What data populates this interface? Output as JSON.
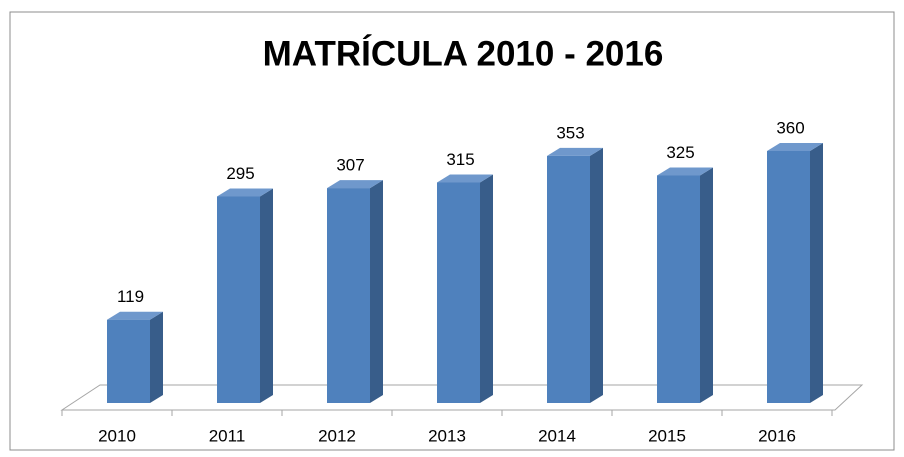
{
  "chart_data": {
    "type": "bar",
    "title": "MATRÍCULA 2010 - 2016",
    "categories": [
      "2010",
      "2011",
      "2012",
      "2013",
      "2014",
      "2015",
      "2016"
    ],
    "values": [
      119,
      295,
      307,
      315,
      353,
      325,
      360
    ],
    "color": "#4f81bd",
    "ylim": [
      0,
      500
    ]
  }
}
